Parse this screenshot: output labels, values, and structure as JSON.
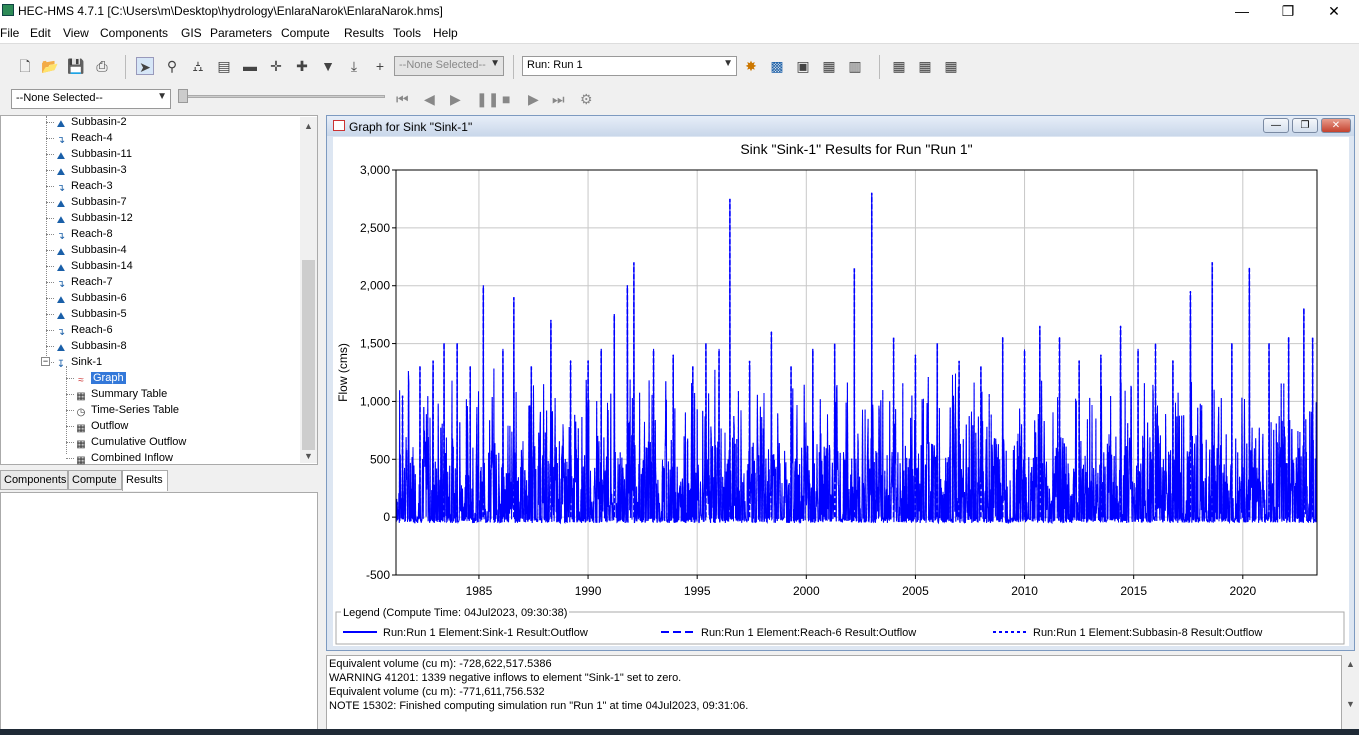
{
  "window": {
    "title": "HEC-HMS 4.7.1 [C:\\Users\\m\\Desktop\\hydrology\\EnlaraNarok\\EnlaraNarok.hms]"
  },
  "menu": [
    "File",
    "Edit",
    "View",
    "Components",
    "GIS",
    "Parameters",
    "Compute",
    "Results",
    "Tools",
    "Help"
  ],
  "toolbar": {
    "element_select": "--None Selected--",
    "run_select": "Run: Run 1",
    "time_select": "--None Selected--"
  },
  "tree": {
    "items": [
      {
        "label": "Subbasin-2",
        "icon": "subbasin-icon"
      },
      {
        "label": "Reach-4",
        "icon": "reach-icon"
      },
      {
        "label": "Subbasin-11",
        "icon": "subbasin-icon"
      },
      {
        "label": "Subbasin-3",
        "icon": "subbasin-icon"
      },
      {
        "label": "Reach-3",
        "icon": "reach-icon"
      },
      {
        "label": "Subbasin-7",
        "icon": "subbasin-icon"
      },
      {
        "label": "Subbasin-12",
        "icon": "subbasin-icon"
      },
      {
        "label": "Reach-8",
        "icon": "reach-icon"
      },
      {
        "label": "Subbasin-4",
        "icon": "subbasin-icon"
      },
      {
        "label": "Subbasin-14",
        "icon": "subbasin-icon"
      },
      {
        "label": "Reach-7",
        "icon": "reach-icon"
      },
      {
        "label": "Subbasin-6",
        "icon": "subbasin-icon"
      },
      {
        "label": "Subbasin-5",
        "icon": "subbasin-icon"
      },
      {
        "label": "Reach-6",
        "icon": "reach-icon"
      },
      {
        "label": "Subbasin-8",
        "icon": "subbasin-icon"
      },
      {
        "label": "Sink-1",
        "icon": "sink-icon"
      }
    ],
    "children": [
      {
        "label": "Graph",
        "icon": "graph-icon"
      },
      {
        "label": "Summary Table",
        "icon": "table-icon"
      },
      {
        "label": "Time-Series Table",
        "icon": "time-table-icon"
      },
      {
        "label": "Outflow",
        "icon": "table-icon"
      },
      {
        "label": "Cumulative Outflow",
        "icon": "table-icon"
      },
      {
        "label": "Combined Inflow",
        "icon": "table-icon"
      }
    ]
  },
  "tabs": [
    "Components",
    "Compute",
    "Results"
  ],
  "graph_window": {
    "title": "Graph for Sink \"Sink-1\""
  },
  "chart_data": {
    "type": "line",
    "title": "Sink \"Sink-1\" Results for Run \"Run 1\"",
    "xlabel": "",
    "ylabel": "Flow (cms)",
    "xlim": [
      1981.2,
      2023.4
    ],
    "ylim": [
      -500,
      3000
    ],
    "x_ticks": [
      "1985",
      "1990",
      "1995",
      "2000",
      "2005",
      "2010",
      "2015",
      "2020"
    ],
    "x_tick_values": [
      1985,
      1990,
      1995,
      2000,
      2005,
      2010,
      2015,
      2020
    ],
    "y_ticks": [
      "3,000",
      "2,500",
      "2,000",
      "1,500",
      "1,000",
      "500",
      "0",
      "-500"
    ],
    "y_tick_values": [
      3000,
      2500,
      2000,
      1500,
      1000,
      500,
      0,
      -500
    ],
    "grid": true,
    "legend_title": "Legend (Compute Time: 04Jul2023, 09:30:38)",
    "color": "#0000ff",
    "series": [
      {
        "name": "Run:Run 1 Element:Sink-1 Result:Outflow",
        "style": "solid"
      },
      {
        "name": "Run:Run 1 Element:Reach-6 Result:Outflow",
        "style": "dashed"
      },
      {
        "name": "Run:Run 1 Element:Subbasin-8 Result:Outflow",
        "style": "dotted"
      }
    ],
    "peaks": [
      {
        "x": 1981.5,
        "y": 1050
      },
      {
        "x": 1982.3,
        "y": 1300
      },
      {
        "x": 1982.9,
        "y": 1350
      },
      {
        "x": 1983.4,
        "y": 1500
      },
      {
        "x": 1984.0,
        "y": 1500
      },
      {
        "x": 1984.6,
        "y": 1300
      },
      {
        "x": 1985.2,
        "y": 2000
      },
      {
        "x": 1986.1,
        "y": 1450
      },
      {
        "x": 1986.6,
        "y": 1900
      },
      {
        "x": 1987.4,
        "y": 1300
      },
      {
        "x": 1988.3,
        "y": 1700
      },
      {
        "x": 1989.2,
        "y": 1350
      },
      {
        "x": 1990.0,
        "y": 1350
      },
      {
        "x": 1990.6,
        "y": 1450
      },
      {
        "x": 1991.2,
        "y": 1750
      },
      {
        "x": 1991.8,
        "y": 2000
      },
      {
        "x": 1992.1,
        "y": 2200
      },
      {
        "x": 1993.0,
        "y": 1450
      },
      {
        "x": 1993.9,
        "y": 1400
      },
      {
        "x": 1994.8,
        "y": 1300
      },
      {
        "x": 1995.4,
        "y": 1500
      },
      {
        "x": 1996.0,
        "y": 1450
      },
      {
        "x": 1996.5,
        "y": 2750
      },
      {
        "x": 1997.4,
        "y": 1350
      },
      {
        "x": 1998.4,
        "y": 1600
      },
      {
        "x": 1999.3,
        "y": 1300
      },
      {
        "x": 2000.3,
        "y": 1450
      },
      {
        "x": 2001.3,
        "y": 1500
      },
      {
        "x": 2002.2,
        "y": 2150
      },
      {
        "x": 2003.0,
        "y": 2800
      },
      {
        "x": 2004.0,
        "y": 1550
      },
      {
        "x": 2005.0,
        "y": 1400
      },
      {
        "x": 2006.0,
        "y": 1500
      },
      {
        "x": 2007.0,
        "y": 1350
      },
      {
        "x": 2008.0,
        "y": 1300
      },
      {
        "x": 2009.0,
        "y": 1550
      },
      {
        "x": 2010.0,
        "y": 1450
      },
      {
        "x": 2010.7,
        "y": 1650
      },
      {
        "x": 2011.6,
        "y": 1550
      },
      {
        "x": 2012.5,
        "y": 1350
      },
      {
        "x": 2013.5,
        "y": 1400
      },
      {
        "x": 2014.4,
        "y": 1650
      },
      {
        "x": 2015.2,
        "y": 1450
      },
      {
        "x": 2016.0,
        "y": 1500
      },
      {
        "x": 2016.8,
        "y": 1350
      },
      {
        "x": 2017.6,
        "y": 1950
      },
      {
        "x": 2018.6,
        "y": 2200
      },
      {
        "x": 2019.5,
        "y": 1500
      },
      {
        "x": 2020.3,
        "y": 2150
      },
      {
        "x": 2021.2,
        "y": 1500
      },
      {
        "x": 2022.1,
        "y": 1550
      },
      {
        "x": 2022.8,
        "y": 1800
      },
      {
        "x": 2023.2,
        "y": 1550
      }
    ],
    "baseline_range": [
      -50,
      700
    ],
    "min_value": -50
  },
  "log": [
    "    Equivalent volume (cu m): -728,622,517.5386",
    "WARNING 41201:  1339 negative inflows to element \"Sink-1\" set to zero.",
    "    Equivalent volume (cu m): -771,611,756.532",
    "NOTE 15302:  Finished computing simulation run \"Run 1\" at time 04Jul2023, 09:31:06."
  ]
}
